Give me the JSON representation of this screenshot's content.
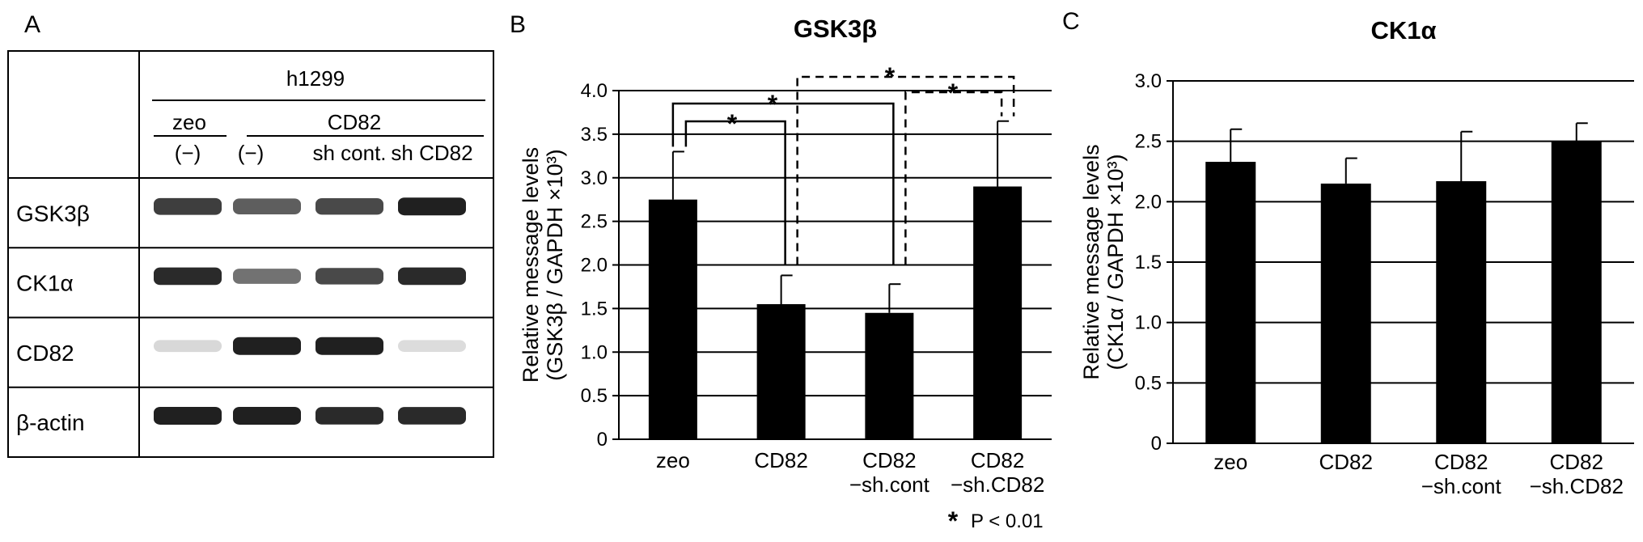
{
  "panel_labels": {
    "a": "A",
    "b": "B",
    "c": "C"
  },
  "blot": {
    "cell_line": "h1299",
    "group_zeo": "zeo",
    "group_cd82": "CD82",
    "lanes": [
      "(−)",
      "(−)",
      "sh cont.",
      "sh CD82"
    ],
    "rows": [
      {
        "label": "GSK3β",
        "intensity": [
          0.85,
          0.7,
          0.8,
          1.0
        ]
      },
      {
        "label": "CK1α",
        "intensity": [
          0.95,
          0.6,
          0.8,
          0.95
        ]
      },
      {
        "label": "CD82",
        "intensity": [
          0.1,
          1.0,
          1.0,
          0.08
        ]
      },
      {
        "label": "β-actin",
        "intensity": [
          1.0,
          1.0,
          0.95,
          0.95
        ]
      }
    ]
  },
  "chart_data": [
    {
      "type": "bar",
      "title": "GSK3β",
      "ylabel_line1": "Relative message levels",
      "ylabel_line2": "(GSK3β / GAPDH  ×10³)",
      "categories": [
        [
          "zeo"
        ],
        [
          "CD82"
        ],
        [
          "CD82",
          "−sh.cont"
        ],
        [
          "CD82",
          "−sh.CD82"
        ]
      ],
      "values": [
        2.75,
        1.55,
        1.45,
        2.9
      ],
      "errors": [
        0.55,
        0.33,
        0.33,
        0.75
      ],
      "ylim": [
        0,
        4.0
      ],
      "yticks": [
        "0",
        "0.5",
        "1.0",
        "1.5",
        "2.0",
        "2.5",
        "3.0",
        "3.5",
        "4.0"
      ],
      "grid": true,
      "bar_color": "#000000",
      "significance": [
        {
          "from": 0,
          "to": 1,
          "style": "solid",
          "label": "*"
        },
        {
          "from": 0,
          "to": 2,
          "style": "solid",
          "label": "*"
        },
        {
          "from": 1,
          "to": 3,
          "style": "dashed",
          "label": "*"
        },
        {
          "from": 2,
          "to": 3,
          "style": "dashed",
          "label": "*"
        }
      ],
      "footnote": "P < 0.01",
      "footnote_symbol": "*"
    },
    {
      "type": "bar",
      "title": "CK1α",
      "ylabel_line1": "Relative message levels",
      "ylabel_line2": "(CK1α / GAPDH  ×10³)",
      "categories": [
        [
          "zeo"
        ],
        [
          "CD82"
        ],
        [
          "CD82",
          "−sh.cont"
        ],
        [
          "CD82",
          "−sh.CD82"
        ]
      ],
      "values": [
        2.33,
        2.15,
        2.17,
        2.5
      ],
      "errors": [
        0.27,
        0.21,
        0.41,
        0.15
      ],
      "ylim": [
        0,
        3.0
      ],
      "yticks": [
        "0",
        "0.5",
        "1.0",
        "1.5",
        "2.0",
        "2.5",
        "3.0"
      ],
      "grid": true,
      "bar_color": "#000000"
    }
  ]
}
